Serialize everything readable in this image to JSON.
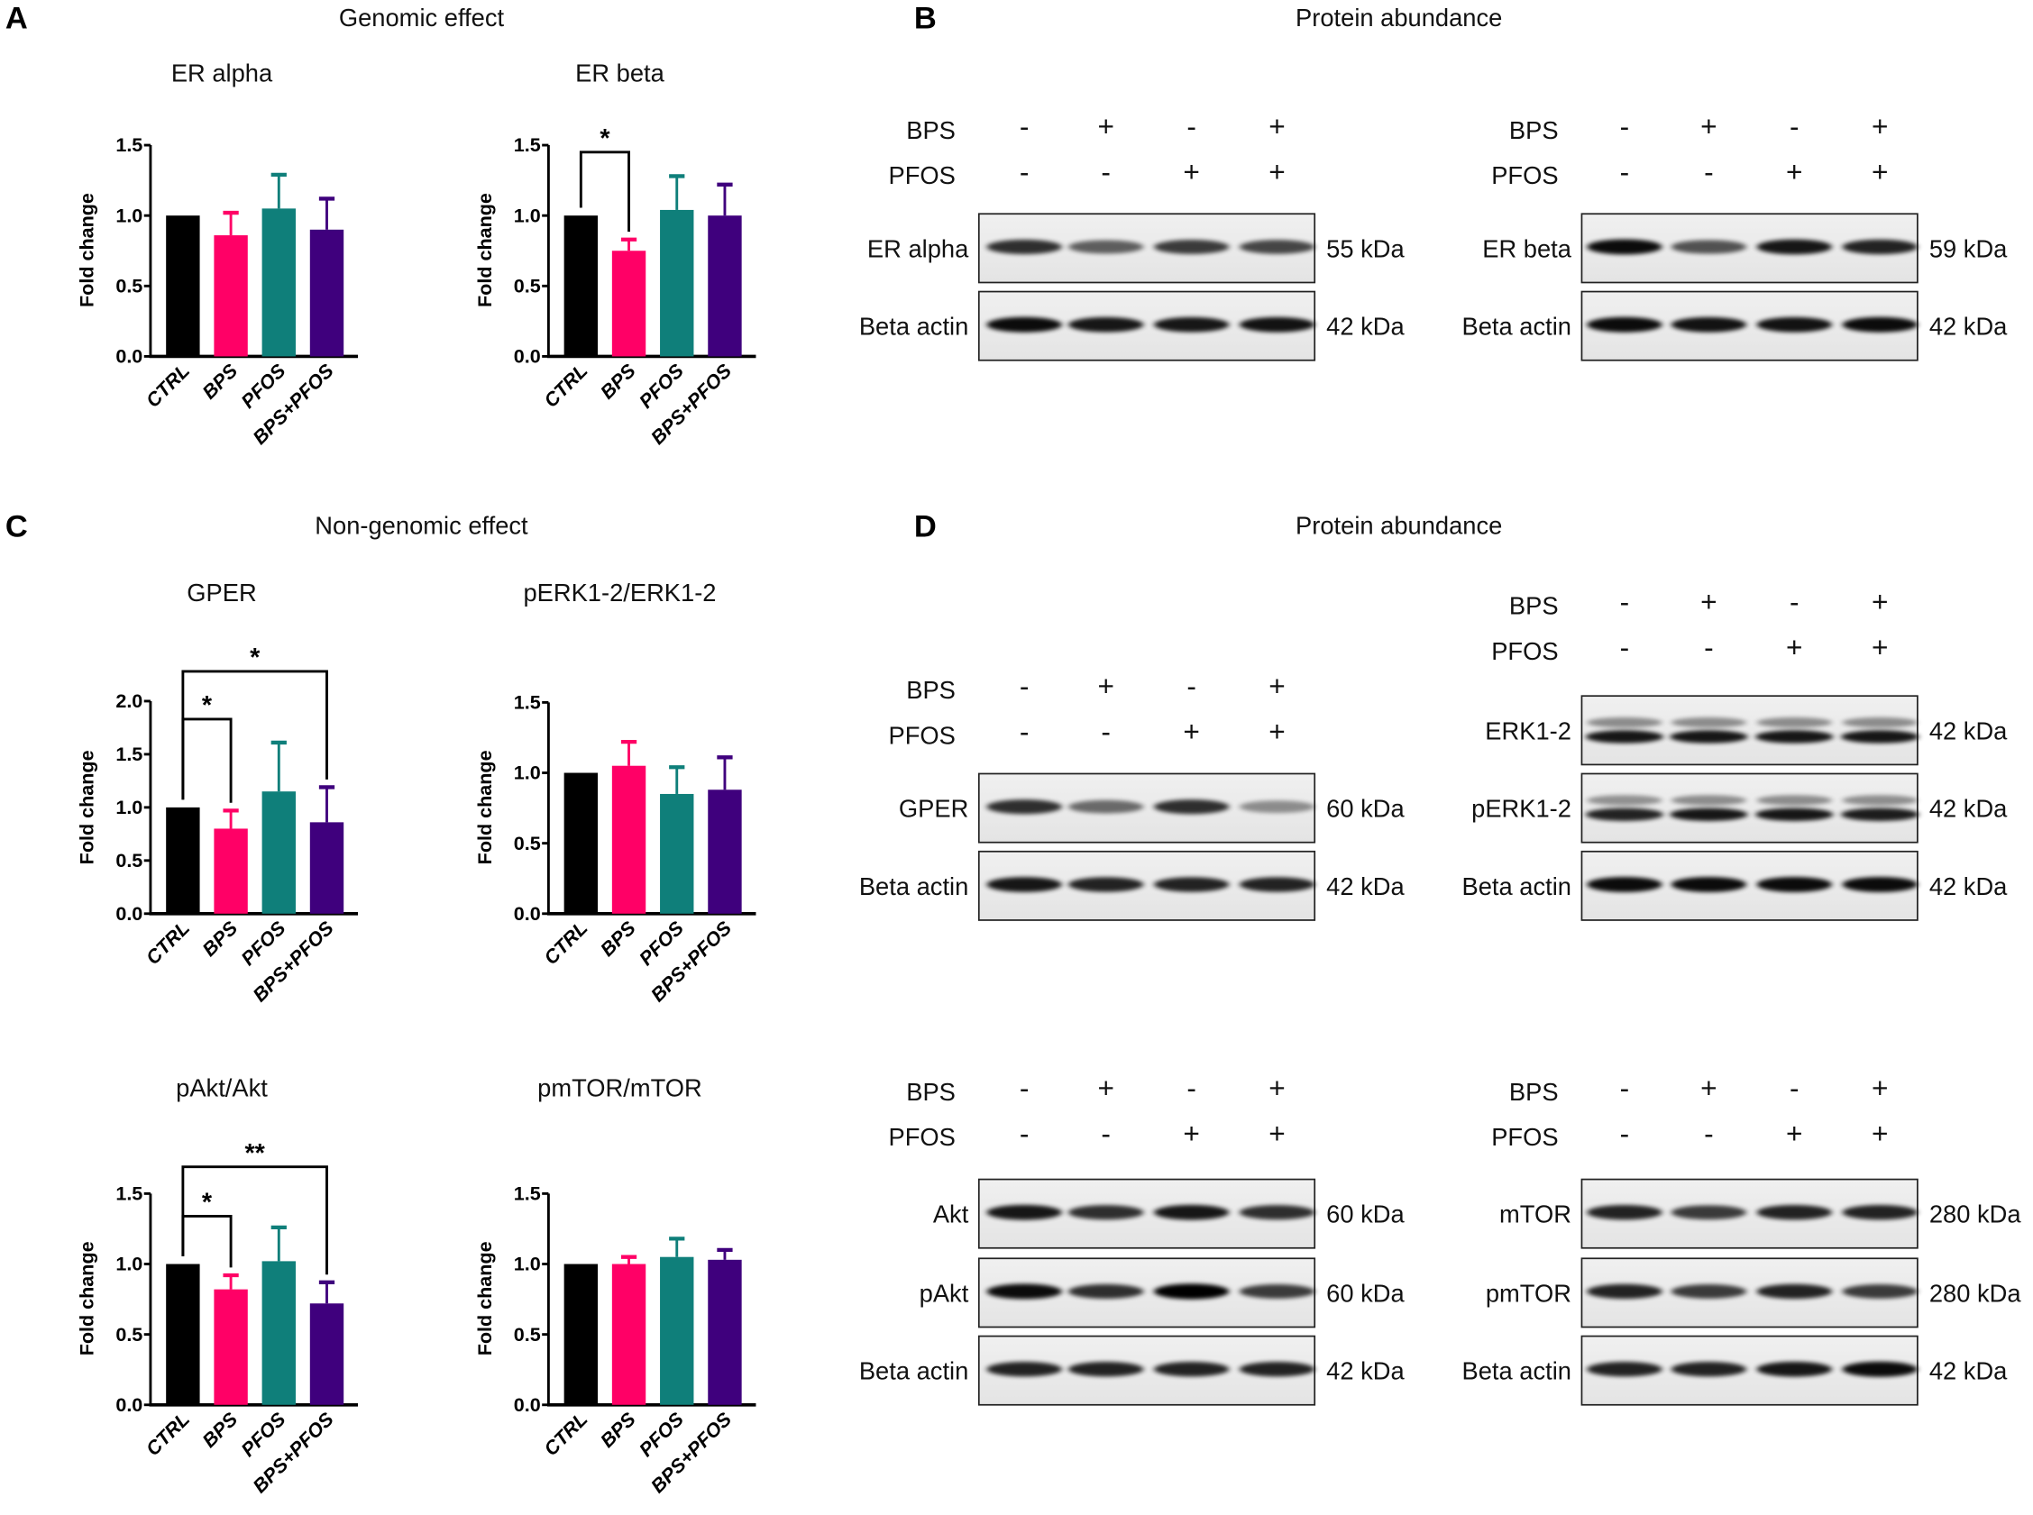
{
  "letters": [
    "A",
    "B",
    "C",
    "D"
  ],
  "section_titles": {
    "a": "Genomic effect",
    "b": "Protein abundance",
    "c": "Non-genomic effect",
    "d": "Protein abundance"
  },
  "colors": {
    "CTRL": "#000000",
    "BPS": "#ff0066",
    "PFOS": "#0f7f7a",
    "BPS+PFOS": "#3f007d"
  },
  "chart_data": [
    {
      "type": "bar",
      "title": "ER alpha",
      "ylabel": "Fold change",
      "categories": [
        "CTRL",
        "BPS",
        "PFOS",
        "BPS+PFOS"
      ],
      "values": [
        1.0,
        0.86,
        1.05,
        0.9
      ],
      "errors_upper": [
        1.0,
        1.02,
        1.29,
        1.12
      ],
      "ylim": [
        0,
        1.5
      ],
      "yticks": [
        "0.0",
        "0.5",
        "1.0",
        "1.5"
      ],
      "brackets": []
    },
    {
      "type": "bar",
      "title": "ER beta",
      "ylabel": "Fold change",
      "categories": [
        "CTRL",
        "BPS",
        "PFOS",
        "BPS+PFOS"
      ],
      "values": [
        1.0,
        0.75,
        1.04,
        1.0
      ],
      "errors_upper": [
        1.0,
        0.83,
        1.28,
        1.22
      ],
      "ylim": [
        0,
        1.5
      ],
      "yticks": [
        "0.0",
        "0.5",
        "1.0",
        "1.5"
      ],
      "brackets": [
        {
          "from": "CTRL",
          "to": "BPS",
          "y": 1.45,
          "label": "*"
        }
      ]
    },
    {
      "type": "bar",
      "title": "GPER",
      "ylabel": "Fold change",
      "categories": [
        "CTRL",
        "BPS",
        "PFOS",
        "BPS+PFOS"
      ],
      "values": [
        1.0,
        0.8,
        1.15,
        0.86
      ],
      "errors_upper": [
        1.0,
        0.97,
        1.61,
        1.19
      ],
      "ylim": [
        0,
        2.0
      ],
      "yticks": [
        "0.0",
        "0.5",
        "1.0",
        "1.5",
        "2.0"
      ],
      "brackets": [
        {
          "from": "CTRL",
          "to": "BPS",
          "y": 1.83,
          "label": "*"
        },
        {
          "from": "CTRL",
          "to": "BPS+PFOS",
          "y": 2.28,
          "label": "*"
        }
      ]
    },
    {
      "type": "bar",
      "title": "pERK1-2/ERK1-2",
      "ylabel": "Fold change",
      "categories": [
        "CTRL",
        "BPS",
        "PFOS",
        "BPS+PFOS"
      ],
      "values": [
        1.0,
        1.05,
        0.85,
        0.88
      ],
      "errors_upper": [
        1.0,
        1.22,
        1.04,
        1.11
      ],
      "ylim": [
        0,
        1.5
      ],
      "yticks": [
        "0.0",
        "0.5",
        "1.0",
        "1.5"
      ],
      "brackets": []
    },
    {
      "type": "bar",
      "title": "pAkt/Akt",
      "ylabel": "Fold change",
      "categories": [
        "CTRL",
        "BPS",
        "PFOS",
        "BPS+PFOS"
      ],
      "values": [
        1.0,
        0.82,
        1.02,
        0.72
      ],
      "errors_upper": [
        1.0,
        0.92,
        1.26,
        0.87
      ],
      "ylim": [
        0,
        1.5
      ],
      "yticks": [
        "0.0",
        "0.5",
        "1.0",
        "1.5"
      ],
      "brackets": [
        {
          "from": "CTRL",
          "to": "BPS",
          "y": 1.34,
          "label": "*"
        },
        {
          "from": "CTRL",
          "to": "BPS+PFOS",
          "y": 1.69,
          "label": "**"
        }
      ]
    },
    {
      "type": "bar",
      "title": "pmTOR/mTOR",
      "ylabel": "Fold change",
      "categories": [
        "CTRL",
        "BPS",
        "PFOS",
        "BPS+PFOS"
      ],
      "values": [
        1.0,
        1.0,
        1.05,
        1.03
      ],
      "errors_upper": [
        1.0,
        1.05,
        1.18,
        1.1
      ],
      "ylim": [
        0,
        1.5
      ],
      "yticks": [
        "0.0",
        "0.5",
        "1.0",
        "1.5"
      ],
      "brackets": []
    }
  ],
  "blots": [
    {
      "bps_label": "BPS",
      "pfos_label": "PFOS",
      "bps": [
        "-",
        "+",
        "-",
        "+"
      ],
      "pfos": [
        "-",
        "-",
        "+",
        "+"
      ],
      "rows": [
        {
          "label": "ER alpha",
          "kda": "55 kDa",
          "intensity": [
            0.8,
            0.6,
            0.75,
            0.7
          ]
        },
        {
          "label": "Beta actin",
          "kda": "42 kDa",
          "intensity": [
            0.95,
            0.9,
            0.9,
            0.92
          ]
        }
      ]
    },
    {
      "bps_label": "BPS",
      "pfos_label": "PFOS",
      "bps": [
        "-",
        "+",
        "-",
        "+"
      ],
      "pfos": [
        "-",
        "-",
        "+",
        "+"
      ],
      "rows": [
        {
          "label": "ER beta",
          "kda": "59 kDa",
          "intensity": [
            0.95,
            0.65,
            0.9,
            0.85
          ]
        },
        {
          "label": "Beta actin",
          "kda": "42 kDa",
          "intensity": [
            0.95,
            0.92,
            0.92,
            0.95
          ]
        }
      ]
    },
    {
      "bps_label": "BPS",
      "pfos_label": "PFOS",
      "bps": [
        "-",
        "+",
        "-",
        "+"
      ],
      "pfos": [
        "-",
        "-",
        "+",
        "+"
      ],
      "rows": [
        {
          "label": "GPER",
          "kda": "60 kDa",
          "intensity": [
            0.8,
            0.55,
            0.8,
            0.4
          ]
        },
        {
          "label": "Beta actin",
          "kda": "42 kDa",
          "intensity": [
            0.9,
            0.85,
            0.85,
            0.85
          ]
        }
      ]
    },
    {
      "bps_label": "BPS",
      "pfos_label": "PFOS",
      "bps": [
        "-",
        "+",
        "-",
        "+"
      ],
      "pfos": [
        "-",
        "-",
        "+",
        "+"
      ],
      "rows": [
        {
          "label": "ERK1-2",
          "kda": "42 kDa",
          "intensity": [
            0.9,
            0.9,
            0.9,
            0.9
          ],
          "double": true
        },
        {
          "label": "pERK1-2",
          "kda": "42 kDa",
          "intensity": [
            0.85,
            0.9,
            0.9,
            0.88
          ],
          "double": true
        },
        {
          "label": "Beta actin",
          "kda": "42 kDa",
          "intensity": [
            0.95,
            0.95,
            0.95,
            0.95
          ]
        }
      ]
    },
    {
      "bps_label": "BPS",
      "pfos_label": "PFOS",
      "bps": [
        "-",
        "+",
        "-",
        "+"
      ],
      "pfos": [
        "-",
        "-",
        "+",
        "+"
      ],
      "rows": [
        {
          "label": "Akt",
          "kda": "60 kDa",
          "intensity": [
            0.9,
            0.8,
            0.9,
            0.8
          ]
        },
        {
          "label": "pAkt",
          "kda": "60 kDa",
          "intensity": [
            0.95,
            0.8,
            1.0,
            0.75
          ]
        },
        {
          "label": "Beta actin",
          "kda": "42 kDa",
          "intensity": [
            0.85,
            0.85,
            0.85,
            0.85
          ]
        }
      ]
    },
    {
      "bps_label": "BPS",
      "pfos_label": "PFOS",
      "bps": [
        "-",
        "+",
        "-",
        "+"
      ],
      "pfos": [
        "-",
        "-",
        "+",
        "+"
      ],
      "rows": [
        {
          "label": "mTOR",
          "kda": "280 kDa",
          "intensity": [
            0.85,
            0.75,
            0.85,
            0.85
          ]
        },
        {
          "label": "pmTOR",
          "kda": "280 kDa",
          "intensity": [
            0.85,
            0.75,
            0.85,
            0.75
          ]
        },
        {
          "label": "Beta actin",
          "kda": "42 kDa",
          "intensity": [
            0.85,
            0.85,
            0.9,
            0.95
          ]
        }
      ]
    }
  ]
}
